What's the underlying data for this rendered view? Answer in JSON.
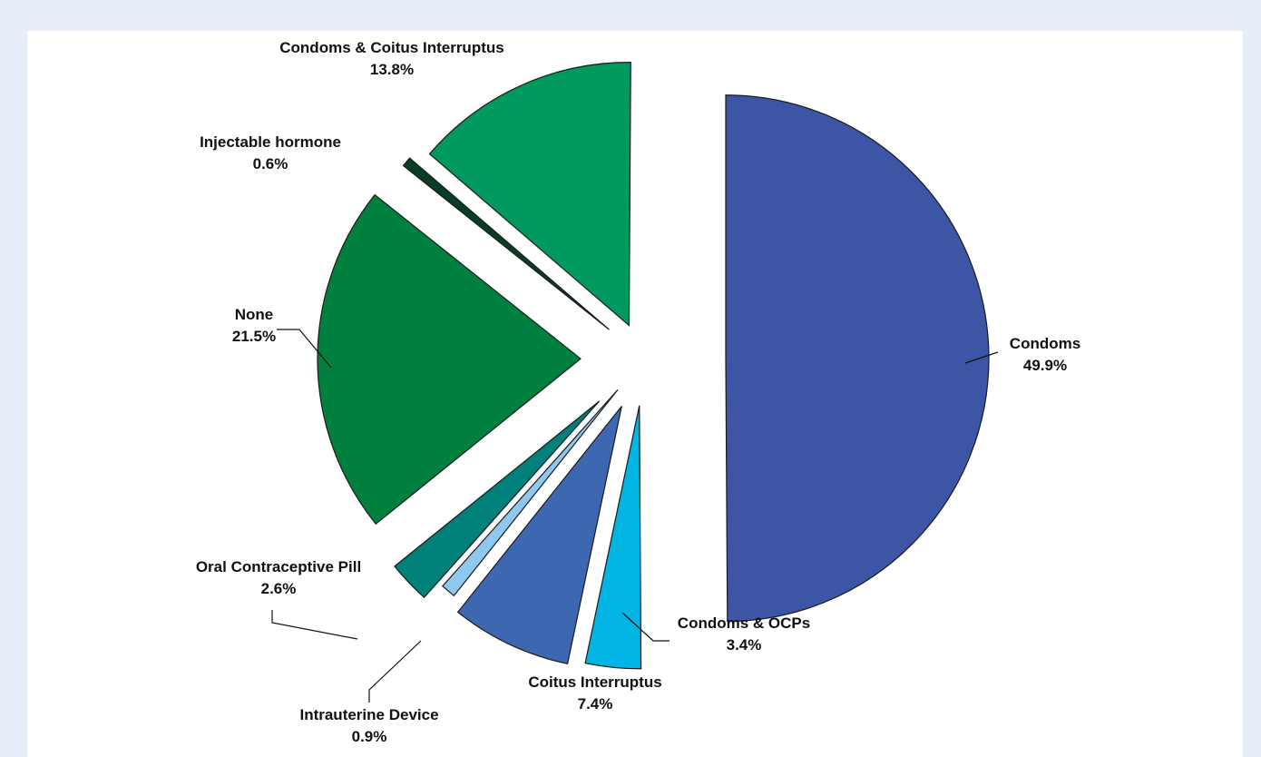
{
  "chart_data": {
    "type": "pie",
    "title": "",
    "slices": [
      {
        "label": "Condoms",
        "value_label": "49.9%",
        "value": 49.9,
        "color": "#3c55a5"
      },
      {
        "label": "Condoms & OCPs",
        "value_label": "3.4%",
        "value": 3.4,
        "color": "#00b4e4"
      },
      {
        "label": "Coitus Interruptus",
        "value_label": "7.4%",
        "value": 7.4,
        "color": "#3d67b0"
      },
      {
        "label": "Intrauterine Device",
        "value_label": "0.9%",
        "value": 0.9,
        "color": "#8ec8ee"
      },
      {
        "label": "Oral Contraceptive Pill",
        "value_label": "2.6%",
        "value": 2.6,
        "color": "#00807a"
      },
      {
        "label": "None",
        "value_label": "21.5%",
        "value": 21.5,
        "color": "#00803f"
      },
      {
        "label": "Injectable hormone",
        "value_label": "0.6%",
        "value": 0.6,
        "color": "#0a3e24"
      },
      {
        "label": "Condoms & Coitus Interruptus",
        "value_label": "13.8%",
        "value": 13.8,
        "color": "#00995e"
      }
    ]
  }
}
